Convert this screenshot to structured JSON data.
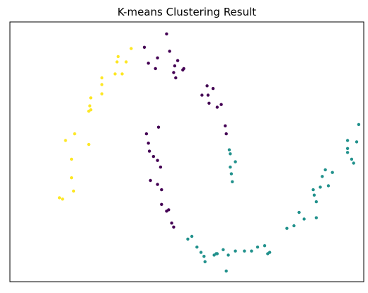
{
  "chart_data": {
    "type": "scatter",
    "title": "K-means Clustering Result",
    "xlabel": "",
    "ylabel": "",
    "xlim": [
      -1.25,
      2.25
    ],
    "ylim": [
      -0.7,
      1.25
    ],
    "grid": false,
    "colors": {
      "cluster_0": "#440154",
      "cluster_1": "#21918c",
      "cluster_2": "#fde725"
    },
    "series": [
      {
        "cluster": 0,
        "points": [
          [
            0.08,
            1.06
          ],
          [
            0.3,
            1.16
          ],
          [
            0.12,
            0.94
          ],
          [
            0.19,
            0.9
          ],
          [
            0.21,
            0.98
          ],
          [
            0.33,
            1.03
          ],
          [
            0.38,
            0.92
          ],
          [
            0.37,
            0.87
          ],
          [
            0.46,
            0.89
          ],
          [
            0.47,
            0.9
          ],
          [
            0.41,
            0.96
          ],
          [
            0.39,
            0.83
          ],
          [
            0.65,
            0.7
          ],
          [
            0.72,
            0.64
          ],
          [
            0.71,
            0.7
          ],
          [
            0.84,
            0.63
          ],
          [
            0.8,
            0.61
          ],
          [
            0.7,
            0.77
          ],
          [
            0.76,
            0.75
          ],
          [
            0.88,
            0.47
          ],
          [
            0.89,
            0.41
          ],
          [
            0.1,
            0.41
          ],
          [
            0.22,
            0.46
          ],
          [
            0.12,
            0.34
          ],
          [
            0.13,
            0.28
          ],
          [
            0.17,
            0.24
          ],
          [
            0.21,
            0.21
          ],
          [
            0.24,
            0.16
          ],
          [
            0.14,
            0.06
          ],
          [
            0.21,
            0.03
          ],
          [
            0.25,
            -0.01
          ],
          [
            0.25,
            -0.12
          ],
          [
            0.3,
            -0.17
          ],
          [
            0.32,
            -0.16
          ],
          [
            0.35,
            -0.26
          ],
          [
            0.37,
            -0.29
          ]
        ]
      },
      {
        "cluster": 1,
        "points": [
          [
            0.92,
            0.29
          ],
          [
            0.93,
            0.26
          ],
          [
            0.98,
            0.2
          ],
          [
            0.93,
            0.16
          ],
          [
            0.94,
            0.11
          ],
          [
            0.95,
            0.05
          ],
          [
            2.2,
            0.48
          ],
          [
            2.09,
            0.36
          ],
          [
            2.18,
            0.35
          ],
          [
            2.09,
            0.3
          ],
          [
            2.09,
            0.27
          ],
          [
            2.13,
            0.22
          ],
          [
            2.15,
            0.19
          ],
          [
            1.87,
            0.14
          ],
          [
            1.84,
            0.09
          ],
          [
            1.94,
            0.12
          ],
          [
            1.9,
            0.02
          ],
          [
            1.82,
            0.01
          ],
          [
            1.75,
            -0.01
          ],
          [
            1.76,
            -0.05
          ],
          [
            1.78,
            -0.1
          ],
          [
            1.78,
            -0.22
          ],
          [
            1.61,
            -0.18
          ],
          [
            1.66,
            -0.23
          ],
          [
            1.56,
            -0.28
          ],
          [
            1.49,
            -0.3
          ],
          [
            0.55,
            -0.36
          ],
          [
            0.51,
            -0.38
          ],
          [
            0.6,
            -0.44
          ],
          [
            0.64,
            -0.48
          ],
          [
            0.67,
            -0.51
          ],
          [
            0.68,
            -0.55
          ],
          [
            0.77,
            -0.5
          ],
          [
            0.79,
            -0.49
          ],
          [
            0.8,
            -0.49
          ],
          [
            0.86,
            -0.46
          ],
          [
            0.91,
            -0.5
          ],
          [
            0.89,
            -0.62
          ],
          [
            0.98,
            -0.47
          ],
          [
            1.07,
            -0.47
          ],
          [
            1.14,
            -0.47
          ],
          [
            1.2,
            -0.44
          ],
          [
            1.27,
            -0.43
          ],
          [
            1.3,
            -0.49
          ],
          [
            1.32,
            -0.48
          ]
        ]
      },
      {
        "cluster": 2,
        "points": [
          [
            -0.05,
            1.05
          ],
          [
            -0.18,
            0.99
          ],
          [
            -0.19,
            0.95
          ],
          [
            -0.1,
            0.95
          ],
          [
            -0.21,
            0.86
          ],
          [
            -0.14,
            0.86
          ],
          [
            -0.34,
            0.83
          ],
          [
            -0.34,
            0.78
          ],
          [
            -0.34,
            0.71
          ],
          [
            -0.45,
            0.68
          ],
          [
            -0.46,
            0.62
          ],
          [
            -0.45,
            0.59
          ],
          [
            -0.47,
            0.58
          ],
          [
            -0.61,
            0.41
          ],
          [
            -0.7,
            0.36
          ],
          [
            -0.47,
            0.33
          ],
          [
            -0.64,
            0.22
          ],
          [
            -0.64,
            0.08
          ],
          [
            -0.62,
            -0.02
          ],
          [
            -0.76,
            -0.07
          ],
          [
            -0.73,
            -0.08
          ]
        ]
      }
    ]
  }
}
